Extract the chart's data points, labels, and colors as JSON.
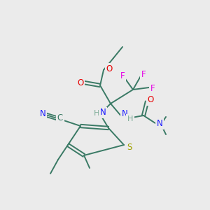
{
  "background_color": "#ebebeb",
  "bond_color": "#3a7a65",
  "colors": {
    "O": "#e60000",
    "N": "#1a1aff",
    "S": "#a0a000",
    "F": "#e600e6",
    "H": "#7aaa95",
    "C": "#3a7a65"
  },
  "figsize": [
    3.0,
    3.0
  ],
  "dpi": 100
}
